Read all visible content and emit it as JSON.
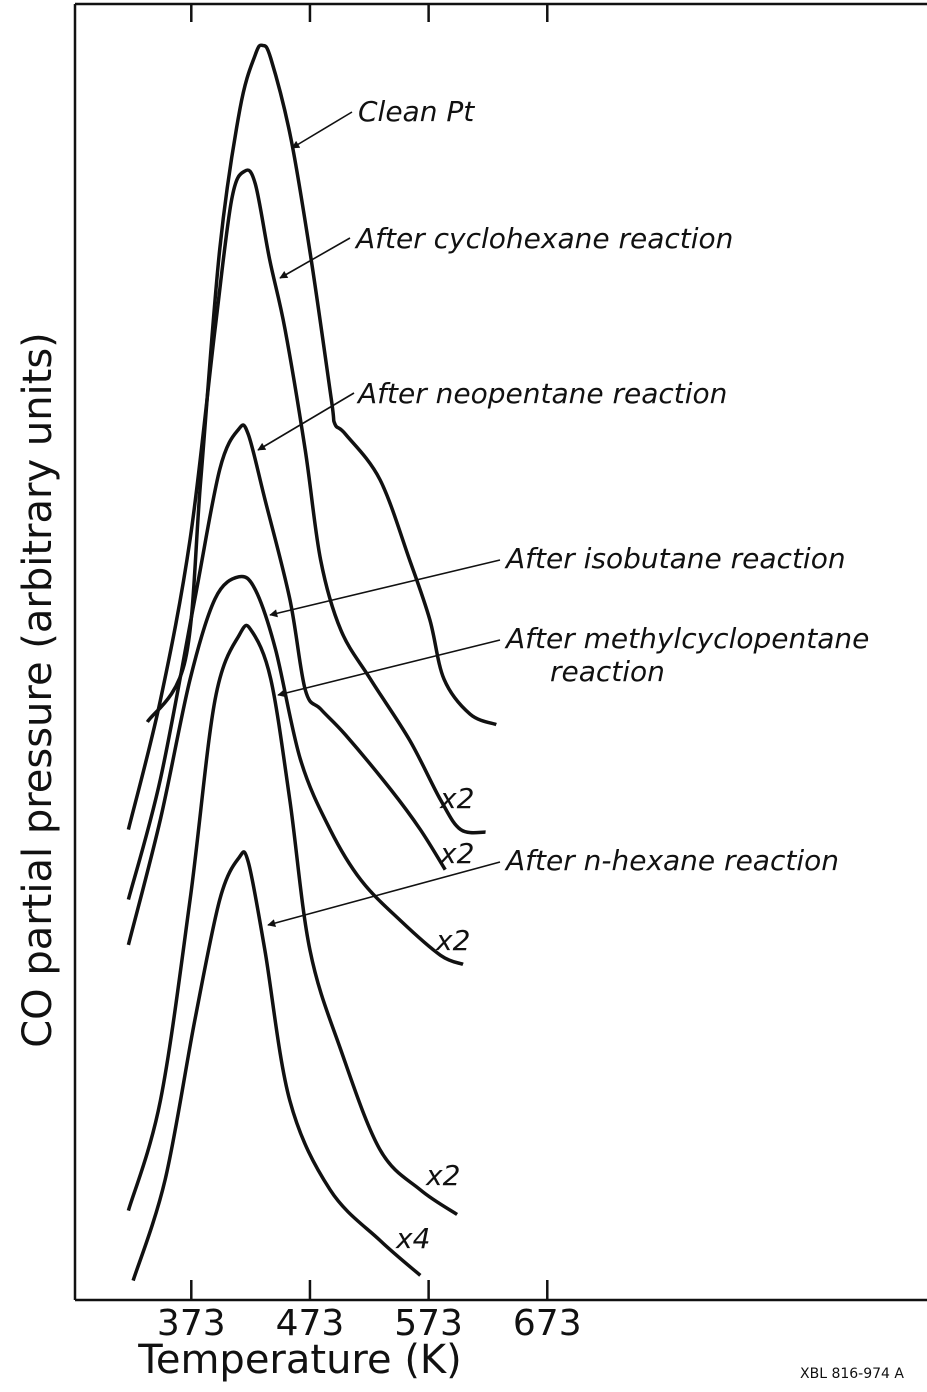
{
  "chart_data": {
    "type": "line",
    "xlabel": "Temperature (K)",
    "ylabel": "CO partial pressure (arbitrary units)",
    "xlim": [
      275,
      993
    ],
    "ylim": [
      0,
      100
    ],
    "xticks": [
      373,
      473,
      573,
      673
    ],
    "color": "#111111",
    "series": [
      {
        "color": "#111111",
        "x": [
          336,
          368,
          381,
          397,
          414,
          427,
          433,
          440,
          457,
          474,
          491,
          494,
          503,
          532,
          557,
          574,
          586,
          608,
          630
        ],
        "values": [
          44.6,
          49.4,
          63.3,
          81.1,
          91.9,
          96.1,
          96.8,
          95.8,
          89.6,
          80.3,
          69.5,
          67.6,
          66.8,
          63.3,
          57.1,
          52.5,
          47.9,
          45.2,
          44.4
        ]
      },
      {
        "color": "#111111",
        "x": [
          320,
          347,
          372,
          393,
          407,
          418,
          427,
          439,
          452,
          469,
          482,
          499,
          524,
          557,
          583,
          600,
          621
        ],
        "values": [
          36.3,
          46.3,
          58.7,
          74.9,
          84.9,
          87.1,
          86.1,
          80.3,
          74.9,
          65.6,
          57.1,
          51.7,
          47.9,
          43.2,
          38.6,
          36.3,
          36.1
        ]
      },
      {
        "color": "#111111",
        "x": [
          320,
          347,
          376,
          397,
          413,
          421,
          435,
          456,
          469,
          482,
          503,
          541,
          566,
          587
        ],
        "values": [
          30.9,
          40.2,
          54.1,
          64.1,
          67.2,
          66.8,
          61.8,
          54.1,
          47.1,
          45.6,
          43.6,
          39.4,
          36.3,
          33.2
        ]
      },
      {
        "color": "#111111",
        "x": [
          320,
          347,
          372,
          393,
          413,
          427,
          444,
          465,
          490,
          516,
          549,
          583,
          602
        ],
        "values": [
          27.4,
          37.1,
          47.9,
          54.1,
          55.8,
          54.8,
          50.2,
          41.7,
          36.3,
          32.4,
          29.3,
          26.6,
          25.9
        ]
      },
      {
        "color": "#111111",
        "x": [
          320,
          347,
          372,
          393,
          414,
          424,
          440,
          456,
          473,
          499,
          532,
          566,
          597
        ],
        "values": [
          6.9,
          15.4,
          30.9,
          46.3,
          51.4,
          51.6,
          47.9,
          38.6,
          27.0,
          19.3,
          11.6,
          8.5,
          6.6
        ]
      },
      {
        "color": "#111111",
        "x": [
          324,
          351,
          376,
          397,
          413,
          421,
          435,
          456,
          490,
          532,
          566
        ],
        "values": [
          1.5,
          9.3,
          21.6,
          30.9,
          34.1,
          33.8,
          27.0,
          15.4,
          8.5,
          4.6,
          1.9
        ]
      }
    ],
    "annotations": [
      "Clean Pt",
      "After cyclohexane reaction",
      "After neopentane reaction",
      "After isobutane reaction",
      "After methylcyclopentane",
      "reaction",
      "After n-hexane reaction",
      "x2",
      "x2",
      "x2",
      "x2",
      "x4"
    ],
    "note": "XBL 816-974 A"
  }
}
